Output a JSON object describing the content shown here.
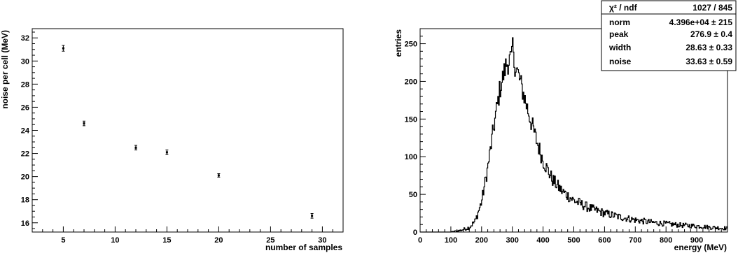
{
  "chart_data": [
    {
      "type": "scatter",
      "title": "",
      "xlabel": "number of samples",
      "ylabel": "noise per cell (MeV)",
      "xlim": [
        2,
        32
      ],
      "ylim": [
        15.2,
        32.8
      ],
      "xticks": [
        "5",
        "10",
        "15",
        "20",
        "25",
        "30"
      ],
      "yticks": [
        "16",
        "18",
        "20",
        "22",
        "24",
        "26",
        "28",
        "30",
        "32"
      ],
      "points": [
        {
          "x": 5,
          "y": 31.1,
          "yerr": 0.25
        },
        {
          "x": 7,
          "y": 24.6,
          "yerr": 0.2
        },
        {
          "x": 12,
          "y": 22.5,
          "yerr": 0.2
        },
        {
          "x": 15,
          "y": 22.1,
          "yerr": 0.2
        },
        {
          "x": 20,
          "y": 20.1,
          "yerr": 0.15
        },
        {
          "x": 29,
          "y": 16.6,
          "yerr": 0.2
        }
      ],
      "grid": false
    },
    {
      "type": "line",
      "title": "",
      "xlabel": "energy (MeV)",
      "ylabel": "entries",
      "xlim": [
        0,
        1000
      ],
      "ylim": [
        0,
        270
      ],
      "xticks": [
        "0",
        "100",
        "200",
        "300",
        "400",
        "500",
        "600",
        "700",
        "800",
        "900"
      ],
      "yticks": [
        "0",
        "50",
        "100",
        "150",
        "200",
        "250"
      ],
      "grid": false,
      "histogram_envelope": {
        "x": [
          0,
          100,
          130,
          160,
          180,
          200,
          220,
          240,
          260,
          280,
          290,
          300,
          310,
          320,
          340,
          360,
          380,
          400,
          430,
          460,
          500,
          550,
          600,
          650,
          700,
          750,
          800,
          850,
          900,
          950,
          1000
        ],
        "y": [
          0,
          0,
          2,
          6,
          15,
          40,
          85,
          140,
          190,
          222,
          228,
          230,
          222,
          208,
          178,
          148,
          120,
          95,
          70,
          55,
          42,
          32,
          25,
          20,
          16,
          13,
          11,
          9,
          8,
          6,
          5
        ]
      },
      "peak_spike": {
        "x": 300,
        "y": 258
      },
      "stats_box": {
        "rows": [
          {
            "label": "χ² / ndf",
            "value": "1027 / 845"
          },
          {
            "label": "norm",
            "value": "4.396e+04 ± 215"
          },
          {
            "label": "peak",
            "value": "276.9 ± 0.4"
          },
          {
            "label": "width",
            "value": "28.63 ± 0.33"
          },
          {
            "label": "noise",
            "value": "33.63 ± 0.59"
          }
        ],
        "position": "top-right"
      }
    }
  ]
}
